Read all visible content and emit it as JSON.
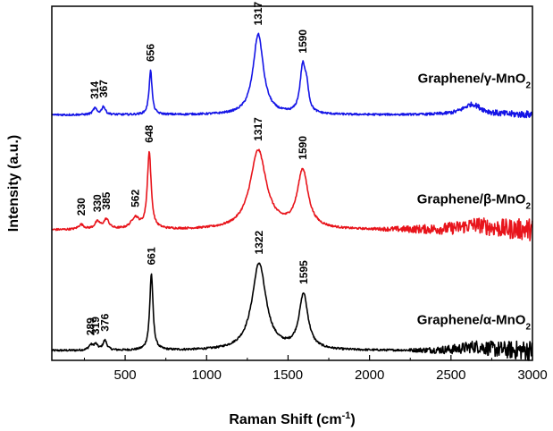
{
  "chart_data": {
    "type": "line",
    "title": "",
    "xlabel": "Raman Shift (cm",
    "xlabel_sup": "-1",
    "xlabel_tail": ")",
    "ylabel": "Intensity (a.u.)",
    "xlim": [
      50,
      3000
    ],
    "ylim": [
      0,
      4.4
    ],
    "xticks": [
      500,
      1000,
      1500,
      2000,
      2500,
      3000
    ],
    "yticks_shown": false,
    "grid": false,
    "series": [
      {
        "name": "Graphene/α-MnO2",
        "label_main": "Graphene/α-MnO",
        "label_sub": "2",
        "color": "#000000",
        "offset": 0.0,
        "baseline": 0.12,
        "noise_from": 2200,
        "peaks": [
          {
            "x": 289,
            "h": 0.06,
            "w": 15
          },
          {
            "x": 319,
            "h": 0.07,
            "w": 15
          },
          {
            "x": 376,
            "h": 0.12,
            "w": 15
          },
          {
            "x": 661,
            "h": 0.95,
            "w": 12
          },
          {
            "x": 1322,
            "h": 1.08,
            "w": 52
          },
          {
            "x": 1595,
            "h": 0.68,
            "w": 33
          },
          {
            "x": 2650,
            "h": 0.05,
            "w": 90
          }
        ],
        "peak_labels": [
          "289",
          "319",
          "376",
          "661",
          "1322",
          "1595"
        ]
      },
      {
        "name": "Graphene/β-MnO2",
        "label_main": "Graphene/β-MnO",
        "label_sub": "2",
        "color": "#e8141b",
        "offset": 1.5,
        "baseline": 0.12,
        "noise_from": 2000,
        "peaks": [
          {
            "x": 230,
            "h": 0.06,
            "w": 20
          },
          {
            "x": 330,
            "h": 0.09,
            "w": 20
          },
          {
            "x": 385,
            "h": 0.12,
            "w": 20
          },
          {
            "x": 562,
            "h": 0.14,
            "w": 30
          },
          {
            "x": 648,
            "h": 0.95,
            "w": 14
          },
          {
            "x": 1317,
            "h": 0.98,
            "w": 60
          },
          {
            "x": 1590,
            "h": 0.72,
            "w": 40
          },
          {
            "x": 2650,
            "h": 0.06,
            "w": 100
          }
        ],
        "peak_labels": [
          "230",
          "330",
          "385",
          "562",
          "648",
          "1317",
          "1590"
        ]
      },
      {
        "name": "Graphene/γ-MnO2",
        "label_main": "Graphene/γ-MnO",
        "label_sub": "2",
        "color": "#1414e6",
        "offset": 3.0,
        "baseline": 0.05,
        "noise_from": 2300,
        "peaks": [
          {
            "x": 314,
            "h": 0.08,
            "w": 14
          },
          {
            "x": 367,
            "h": 0.1,
            "w": 14
          },
          {
            "x": 656,
            "h": 0.55,
            "w": 11
          },
          {
            "x": 1317,
            "h": 1.0,
            "w": 38
          },
          {
            "x": 1590,
            "h": 0.58,
            "w": 20
          },
          {
            "x": 1615,
            "h": 0.25,
            "w": 14
          },
          {
            "x": 2630,
            "h": 0.13,
            "w": 70
          }
        ],
        "peak_labels": [
          "314",
          "367",
          "656",
          "1317",
          "1590"
        ]
      }
    ]
  }
}
